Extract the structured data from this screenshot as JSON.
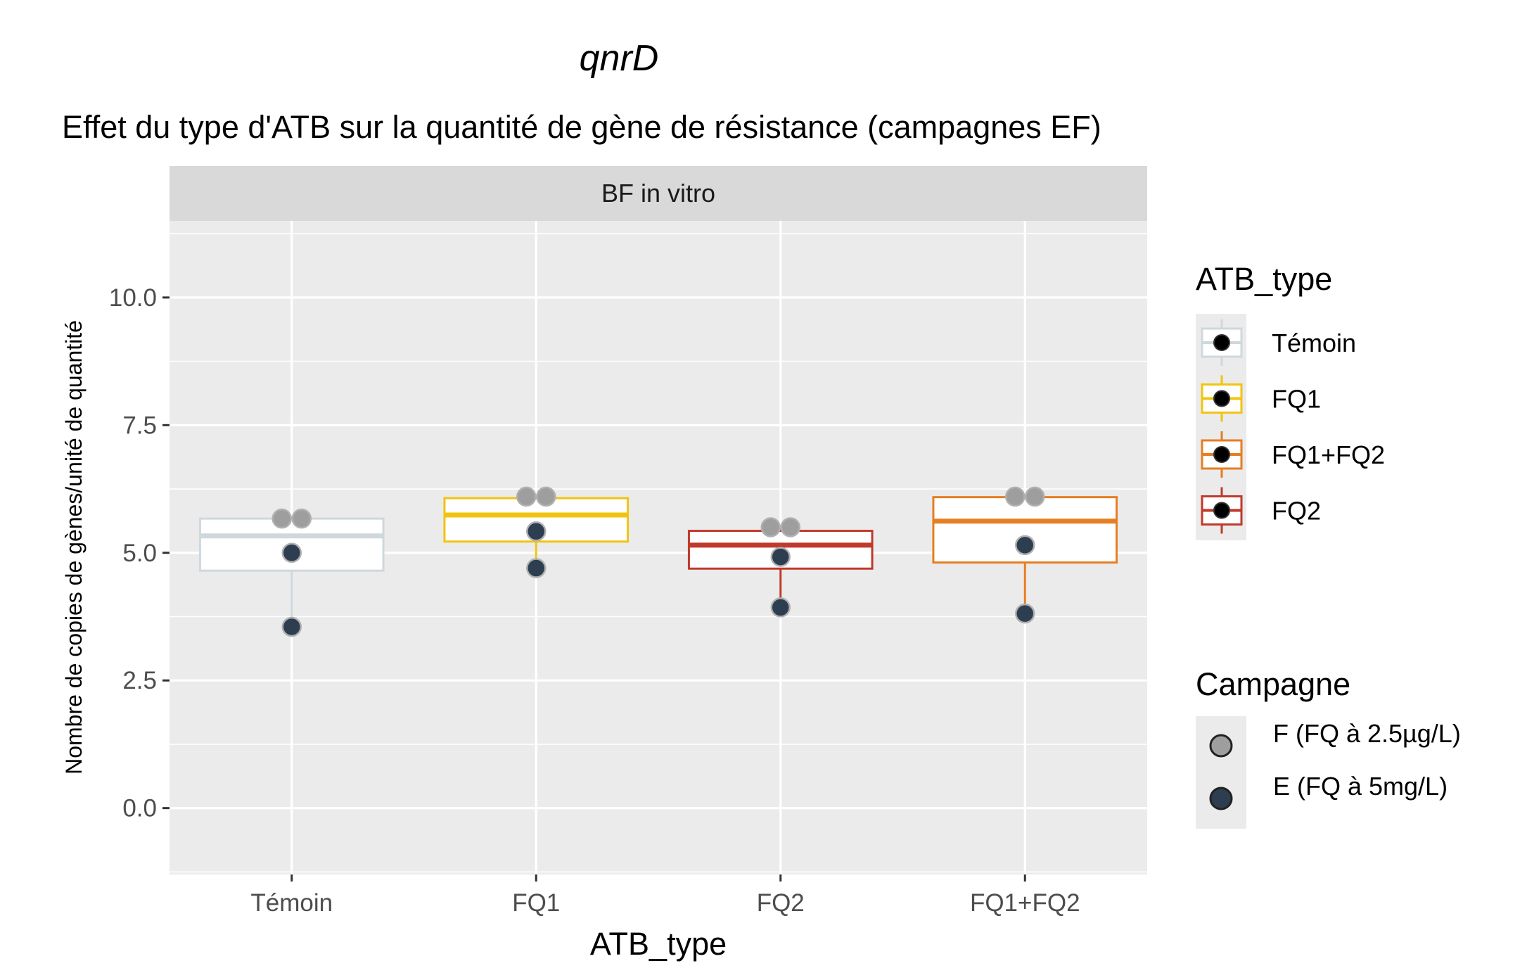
{
  "chart_data": {
    "type": "box",
    "title": "qnrD",
    "subtitle": "Effet du type d'ATB sur la quantité de gène de résistance (campagnes EF)",
    "facet_label": "BF in vitro",
    "xlabel": "ATB_type",
    "ylabel": "Nombre de copies de gènes/unité de quantité",
    "ylim": [
      -1.3,
      11.5
    ],
    "yticks": [
      0.0,
      2.5,
      5.0,
      7.5,
      10.0
    ],
    "ytick_labels": [
      "0.0",
      "2.5",
      "5.0",
      "7.5",
      "10.0"
    ],
    "categories": [
      "Témoin",
      "FQ1",
      "FQ2",
      "FQ1+FQ2"
    ],
    "grid": true,
    "boxes": [
      {
        "category": "Témoin",
        "q1": 4.65,
        "median": 5.33,
        "q3": 5.67,
        "whisker_low": 3.55,
        "whisker_high": 5.67,
        "color": "#CFD8DC"
      },
      {
        "category": "FQ1",
        "q1": 5.22,
        "median": 5.74,
        "q3": 6.07,
        "whisker_low": 4.7,
        "whisker_high": 6.1,
        "color": "#F1C40F"
      },
      {
        "category": "FQ2",
        "q1": 4.69,
        "median": 5.15,
        "q3": 5.43,
        "whisker_low": 3.93,
        "whisker_high": 5.5,
        "color": "#C0392B"
      },
      {
        "category": "FQ1+FQ2",
        "q1": 4.81,
        "median": 5.62,
        "q3": 6.09,
        "whisker_low": 3.81,
        "whisker_high": 6.1,
        "color": "#E67E22"
      }
    ],
    "series": [
      {
        "name": "F (FQ à 2.5µg/L)",
        "color": "#9E9E9E",
        "points": [
          {
            "category": "Témoin",
            "y": 5.67
          },
          {
            "category": "Témoin",
            "y": 5.67
          },
          {
            "category": "FQ1",
            "y": 6.1
          },
          {
            "category": "FQ1",
            "y": 6.1
          },
          {
            "category": "FQ2",
            "y": 5.5
          },
          {
            "category": "FQ2",
            "y": 5.5
          },
          {
            "category": "FQ1+FQ2",
            "y": 6.1
          },
          {
            "category": "FQ1+FQ2",
            "y": 6.1
          }
        ]
      },
      {
        "name": "E (FQ à 5mg/L)",
        "color": "#2C3E50",
        "points": [
          {
            "category": "Témoin",
            "y": 5.0
          },
          {
            "category": "Témoin",
            "y": 3.55
          },
          {
            "category": "FQ1",
            "y": 5.42
          },
          {
            "category": "FQ1",
            "y": 4.7
          },
          {
            "category": "FQ2",
            "y": 4.92
          },
          {
            "category": "FQ2",
            "y": 3.93
          },
          {
            "category": "FQ1+FQ2",
            "y": 5.15
          },
          {
            "category": "FQ1+FQ2",
            "y": 3.81
          }
        ]
      }
    ],
    "legend_placement": "right",
    "legends": [
      {
        "title": "ATB_type",
        "items": [
          {
            "label": "Témoin",
            "color": "#CFD8DC"
          },
          {
            "label": "FQ1",
            "color": "#F1C40F"
          },
          {
            "label": "FQ1+FQ2",
            "color": "#E67E22"
          },
          {
            "label": "FQ2",
            "color": "#C0392B"
          }
        ]
      },
      {
        "title": "Campagne",
        "items": [
          {
            "label": "F (FQ à 2.5µg/L)",
            "color": "#9E9E9E"
          },
          {
            "label": "E (FQ à 5mg/L)",
            "color": "#2C3E50"
          }
        ]
      }
    ]
  }
}
